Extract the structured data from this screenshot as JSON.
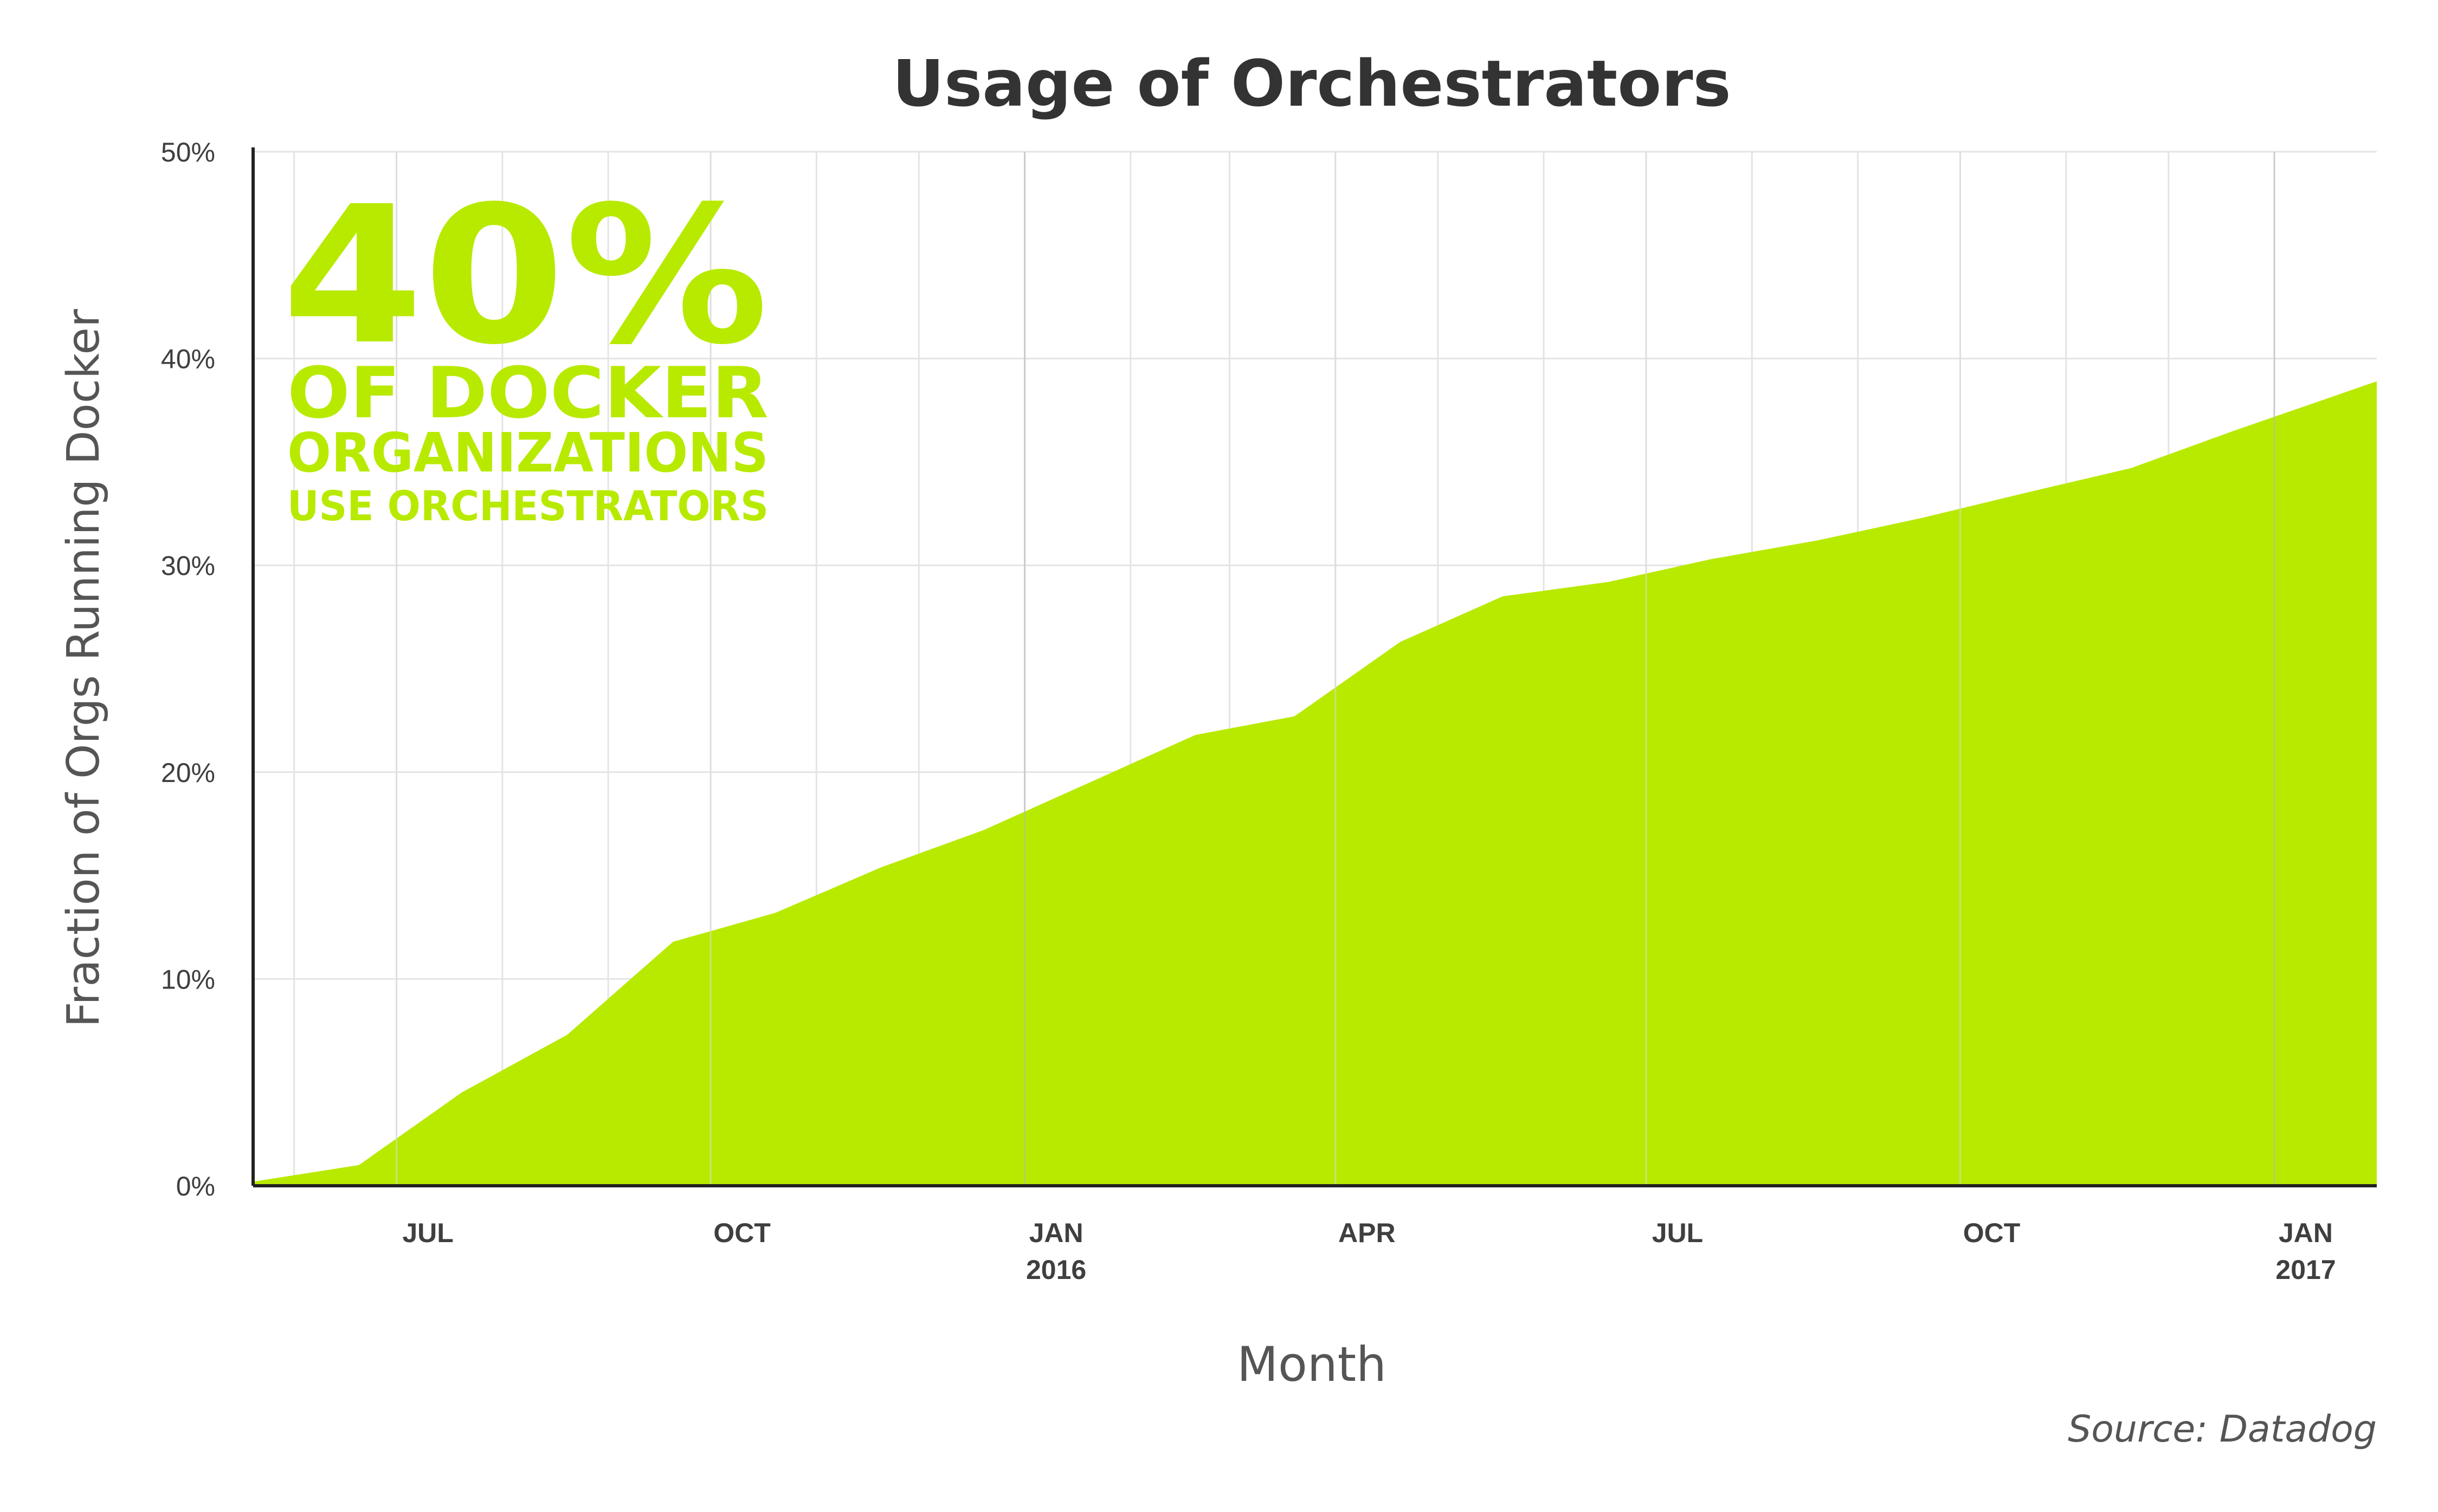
{
  "chart_data": {
    "type": "area",
    "title": "Usage of Orchestrators",
    "xlabel": "Month",
    "ylabel": "Fraction of Orgs Running Docker",
    "source": "Source: Datadog",
    "callout": {
      "big": "40%",
      "line1": "OF DOCKER",
      "line2": "ORGANIZATIONS",
      "line3": "USE ORCHESTRATORS"
    },
    "ylim": [
      0,
      0.5
    ],
    "xlim": [
      "2015-05-20",
      "2017-01-31"
    ],
    "yticks": [
      {
        "value": 0.0,
        "label": "0%"
      },
      {
        "value": 0.1,
        "label": "10%"
      },
      {
        "value": 0.2,
        "label": "20%"
      },
      {
        "value": 0.3,
        "label": "30%"
      },
      {
        "value": 0.4,
        "label": "40%"
      },
      {
        "value": 0.5,
        "label": "50%"
      }
    ],
    "xticks": [
      {
        "date": "2015-07-01",
        "label": "JUL",
        "sublabel": ""
      },
      {
        "date": "2015-10-01",
        "label": "OCT",
        "sublabel": ""
      },
      {
        "date": "2016-01-01",
        "label": "JAN",
        "sublabel": "2016"
      },
      {
        "date": "2016-04-01",
        "label": "APR",
        "sublabel": ""
      },
      {
        "date": "2016-07-01",
        "label": "JUL",
        "sublabel": ""
      },
      {
        "date": "2016-10-01",
        "label": "OCT",
        "sublabel": ""
      },
      {
        "date": "2017-01-01",
        "label": "JAN",
        "sublabel": "2017"
      }
    ],
    "grid": true,
    "legend": "none",
    "colors": {
      "fill": "#b8ea00",
      "callout": "#b8ea00",
      "grid": "#e4e4e4",
      "axis": "#222222",
      "text": "#3f3f3f",
      "source": "#555555"
    },
    "series": [
      {
        "values": [
          {
            "x": "2015-05-20",
            "y": 0.002
          },
          {
            "x": "2015-06-20",
            "y": 0.01
          },
          {
            "x": "2015-07-20",
            "y": 0.045
          },
          {
            "x": "2015-08-20",
            "y": 0.073
          },
          {
            "x": "2015-09-20",
            "y": 0.118
          },
          {
            "x": "2015-10-20",
            "y": 0.132
          },
          {
            "x": "2015-11-20",
            "y": 0.154
          },
          {
            "x": "2015-12-20",
            "y": 0.172
          },
          {
            "x": "2016-01-20",
            "y": 0.195
          },
          {
            "x": "2016-02-20",
            "y": 0.218
          },
          {
            "x": "2016-03-20",
            "y": 0.227
          },
          {
            "x": "2016-04-20",
            "y": 0.263
          },
          {
            "x": "2016-05-20",
            "y": 0.285
          },
          {
            "x": "2016-06-20",
            "y": 0.292
          },
          {
            "x": "2016-07-20",
            "y": 0.303
          },
          {
            "x": "2016-08-20",
            "y": 0.312
          },
          {
            "x": "2016-09-20",
            "y": 0.323
          },
          {
            "x": "2016-10-20",
            "y": 0.335
          },
          {
            "x": "2016-11-20",
            "y": 0.347
          },
          {
            "x": "2016-12-20",
            "y": 0.365
          },
          {
            "x": "2017-01-31",
            "y": 0.389
          }
        ]
      }
    ]
  }
}
